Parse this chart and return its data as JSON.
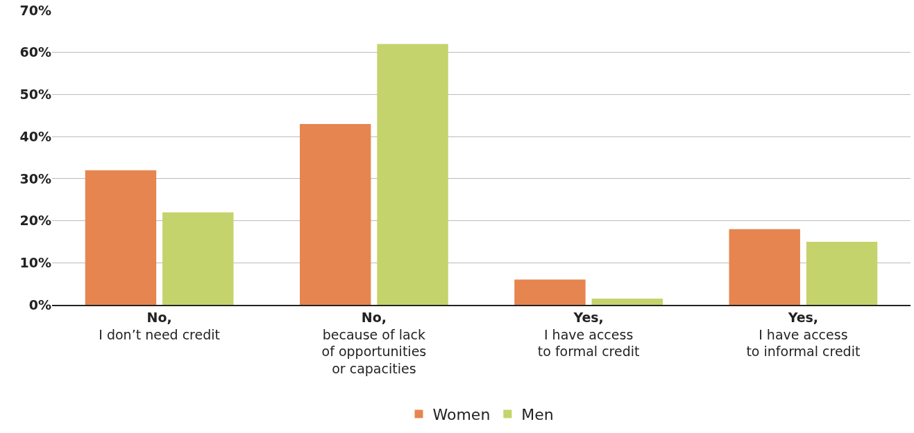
{
  "chart_data": {
    "type": "bar",
    "categories": [
      "No,\nI don’t need credit",
      "No,\nbecause of lack\nof opportunities\nor capacities",
      "Yes,\nI have access\nto formal credit",
      "Yes,\nI have access\nto informal credit"
    ],
    "series": [
      {
        "name": "Women",
        "color": "#e6854f",
        "values": [
          32,
          43,
          6,
          18
        ]
      },
      {
        "name": "Men",
        "color": "#c5d36c",
        "values": [
          22,
          62,
          1.5,
          15
        ]
      }
    ],
    "ylim": [
      0,
      70
    ],
    "yticks": [
      {
        "value": 0,
        "label": "0%"
      },
      {
        "value": 10,
        "label": "10%"
      },
      {
        "value": 20,
        "label": "20%"
      },
      {
        "value": 30,
        "label": "30%"
      },
      {
        "value": 40,
        "label": "40%"
      },
      {
        "value": 50,
        "label": "50%"
      },
      {
        "value": 60,
        "label": "60%"
      },
      {
        "value": 70,
        "label": "70%"
      }
    ],
    "grid": "y",
    "legend": "bottom"
  }
}
